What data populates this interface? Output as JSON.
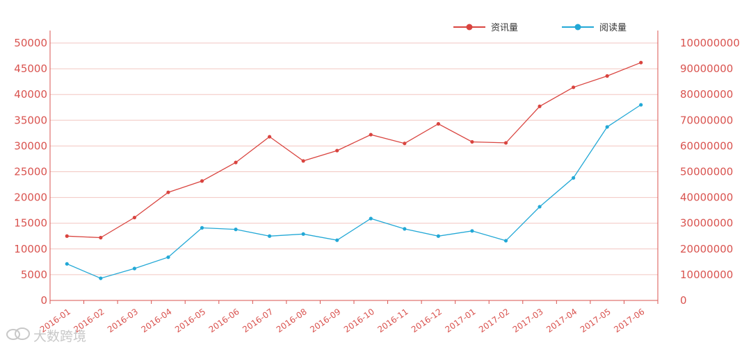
{
  "chart_data": {
    "type": "line",
    "categories": [
      "2016-01",
      "2016-02",
      "2016-03",
      "2016-04",
      "2016-05",
      "2016-06",
      "2016-07",
      "2016-08",
      "2016-09",
      "2016-10",
      "2016-11",
      "2016-12",
      "2017-01",
      "2017-02",
      "2017-03",
      "2017-04",
      "2017-05",
      "2017-06"
    ],
    "series": [
      {
        "name": "资讯量",
        "axis": "left",
        "color": "#d9443f",
        "values": [
          12500,
          12200,
          16100,
          21000,
          23200,
          26800,
          31800,
          27100,
          29100,
          32200,
          30500,
          34300,
          30800,
          30600,
          37700,
          41400,
          43600,
          46200
        ]
      },
      {
        "name": "阅读量",
        "axis": "right",
        "color": "#22a8d6",
        "values": [
          14200000,
          8600000,
          12400000,
          16800000,
          28200000,
          27600000,
          25000000,
          25800000,
          23400000,
          31800000,
          27800000,
          25000000,
          27000000,
          23200000,
          36400000,
          47600000,
          67400000,
          76000000
        ]
      }
    ],
    "y_left": {
      "ylim": [
        0,
        50000
      ],
      "ticks": [
        "0",
        "5000",
        "10000",
        "15000",
        "20000",
        "25000",
        "30000",
        "35000",
        "40000",
        "45000",
        "50000"
      ]
    },
    "y_right": {
      "ylim": [
        0,
        100000000
      ],
      "ticks": [
        "0",
        "10000000",
        "20000000",
        "30000000",
        "40000000",
        "50000000",
        "60000000",
        "70000000",
        "80000000",
        "90000000",
        "100000000"
      ]
    },
    "grid": true,
    "legend_position": "top-right",
    "title": "",
    "xlabel": "",
    "ylabel": ""
  },
  "colors": {
    "axis": "#d9534f",
    "grid": "#f2c6c0"
  },
  "watermark": {
    "text": "大数跨境",
    "icon": "chat-bubble-logo-icon"
  }
}
